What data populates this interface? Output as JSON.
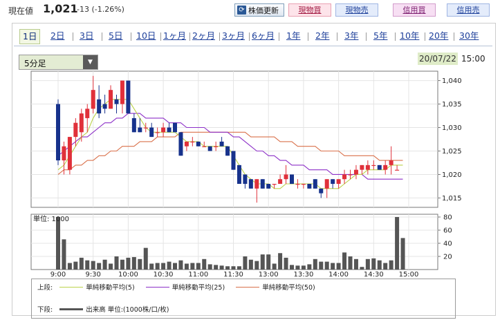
{
  "header": {
    "price_label": "現在値",
    "price_value": "1,021",
    "price_change": "-13 (-1.26%)",
    "refresh_label": "株価更新",
    "buttons": [
      "現物買",
      "現物売",
      "信用買",
      "信用売"
    ]
  },
  "tabs": [
    "1日",
    "2日",
    "3日",
    "5日",
    "10日",
    "1ヶ月",
    "2ヶ月",
    "3ヶ月",
    "6ヶ月",
    "1年",
    "2年",
    "3年",
    "5年",
    "10年",
    "20年",
    "30年"
  ],
  "active_tab": "1日",
  "interval_select": {
    "value": "5分足"
  },
  "date": "20/07/22",
  "time": "15:00",
  "colors": {
    "up": "#e0303a",
    "down": "#17328c",
    "ma5": "#bbd24a",
    "ma25": "#8c2fc7",
    "ma50": "#d9704a",
    "volume": "#555555"
  },
  "chart_data": {
    "type": "candlestick",
    "interval": "5分足",
    "x_tick_labels": [
      "9:00",
      "9:30",
      "10:00",
      "10:30",
      "11:00",
      "11:30",
      "13:00",
      "13:30",
      "14:00",
      "14:30",
      "15:00"
    ],
    "price_axis": {
      "ticks": [
        1015,
        1020,
        1025,
        1030,
        1035,
        1040
      ],
      "tick_labels": [
        "1,015",
        "1,020",
        "1,025",
        "1,030",
        "1,035",
        "1,040"
      ],
      "ylim": [
        1013,
        1042
      ]
    },
    "volume_axis": {
      "unit_label": "単位: 1000",
      "ticks": [
        20,
        40,
        60,
        80
      ],
      "ylim": [
        0,
        80
      ]
    },
    "candles": [
      {
        "o": 1035,
        "h": 1036,
        "l": 1022,
        "c": 1023
      },
      {
        "o": 1023,
        "h": 1027,
        "l": 1020,
        "c": 1026
      },
      {
        "o": 1021,
        "h": 1028,
        "l": 1020,
        "c": 1028
      },
      {
        "o": 1028,
        "h": 1032,
        "l": 1026,
        "c": 1031
      },
      {
        "o": 1029,
        "h": 1034,
        "l": 1027,
        "c": 1033
      },
      {
        "o": 1032,
        "h": 1035,
        "l": 1029,
        "c": 1034
      },
      {
        "o": 1034,
        "h": 1041,
        "l": 1033,
        "c": 1038
      },
      {
        "o": 1036,
        "h": 1039,
        "l": 1032,
        "c": 1033
      },
      {
        "o": 1035,
        "h": 1037,
        "l": 1033,
        "c": 1034
      },
      {
        "o": 1034,
        "h": 1039,
        "l": 1034,
        "c": 1038
      },
      {
        "o": 1036,
        "h": 1037,
        "l": 1033,
        "c": 1035
      },
      {
        "o": 1035,
        "h": 1040,
        "l": 1033,
        "c": 1040
      },
      {
        "o": 1040,
        "h": 1040,
        "l": 1033,
        "c": 1033
      },
      {
        "o": 1032,
        "h": 1033,
        "l": 1029,
        "c": 1029
      },
      {
        "o": 1030,
        "h": 1032,
        "l": 1029,
        "c": 1029
      },
      {
        "o": 1030,
        "h": 1031,
        "l": 1029,
        "c": 1030
      },
      {
        "o": 1030,
        "h": 1031,
        "l": 1028,
        "c": 1028
      },
      {
        "o": 1029,
        "h": 1030,
        "l": 1028,
        "c": 1029
      },
      {
        "o": 1029,
        "h": 1031,
        "l": 1028,
        "c": 1030
      },
      {
        "o": 1030,
        "h": 1031,
        "l": 1029,
        "c": 1029
      },
      {
        "o": 1031,
        "h": 1031,
        "l": 1029,
        "c": 1029
      },
      {
        "o": 1029,
        "h": 1029,
        "l": 1024,
        "c": 1024
      },
      {
        "o": 1026,
        "h": 1027,
        "l": 1025,
        "c": 1027
      },
      {
        "o": 1027,
        "h": 1028,
        "l": 1026,
        "c": 1027
      },
      {
        "o": 1027,
        "h": 1027,
        "l": 1026,
        "c": 1026
      },
      {
        "o": 1026,
        "h": 1027,
        "l": 1026,
        "c": 1026
      },
      {
        "o": 1026,
        "h": 1026,
        "l": 1025,
        "c": 1025
      },
      {
        "o": 1026,
        "h": 1027,
        "l": 1025,
        "c": 1026
      },
      {
        "o": 1027,
        "h": 1028,
        "l": 1026,
        "c": 1026
      },
      {
        "o": 1026,
        "h": 1026,
        "l": 1024,
        "c": 1024
      },
      {
        "o": 1025,
        "h": 1025,
        "l": 1021,
        "c": 1021
      },
      {
        "o": 1022,
        "h": 1022,
        "l": 1018,
        "c": 1018
      },
      {
        "o": 1020,
        "h": 1020,
        "l": 1017,
        "c": 1018
      },
      {
        "o": 1019,
        "h": 1019,
        "l": 1017,
        "c": 1017
      },
      {
        "o": 1017,
        "h": 1019,
        "l": 1014,
        "c": 1019
      },
      {
        "o": 1019,
        "h": 1019,
        "l": 1017,
        "c": 1017
      },
      {
        "o": 1018,
        "h": 1018,
        "l": 1017,
        "c": 1017
      },
      {
        "o": 1018,
        "h": 1018,
        "l": 1017,
        "c": 1018
      },
      {
        "o": 1018,
        "h": 1020,
        "l": 1018,
        "c": 1019
      },
      {
        "o": 1019,
        "h": 1022,
        "l": 1018,
        "c": 1020
      },
      {
        "o": 1020,
        "h": 1020,
        "l": 1018,
        "c": 1018
      },
      {
        "o": 1018,
        "h": 1019,
        "l": 1017,
        "c": 1018
      },
      {
        "o": 1018,
        "h": 1018,
        "l": 1017,
        "c": 1018
      },
      {
        "o": 1018,
        "h": 1018,
        "l": 1017,
        "c": 1017
      },
      {
        "o": 1019,
        "h": 1019,
        "l": 1017,
        "c": 1017
      },
      {
        "o": 1017,
        "h": 1017,
        "l": 1015,
        "c": 1016
      },
      {
        "o": 1017,
        "h": 1019,
        "l": 1015,
        "c": 1019
      },
      {
        "o": 1019,
        "h": 1019,
        "l": 1017,
        "c": 1018
      },
      {
        "o": 1018,
        "h": 1019,
        "l": 1017,
        "c": 1019
      },
      {
        "o": 1019,
        "h": 1021,
        "l": 1018,
        "c": 1020
      },
      {
        "o": 1020,
        "h": 1021,
        "l": 1019,
        "c": 1020
      },
      {
        "o": 1020,
        "h": 1022,
        "l": 1019,
        "c": 1021
      },
      {
        "o": 1021,
        "h": 1022,
        "l": 1020,
        "c": 1022
      },
      {
        "o": 1021,
        "h": 1023,
        "l": 1020,
        "c": 1022
      },
      {
        "o": 1022,
        "h": 1023,
        "l": 1021,
        "c": 1022
      },
      {
        "o": 1022,
        "h": 1022,
        "l": 1021,
        "c": 1021
      },
      {
        "o": 1021,
        "h": 1023,
        "l": 1020,
        "c": 1022
      },
      {
        "o": 1022,
        "h": 1026,
        "l": 1020,
        "c": 1023
      },
      {
        "o": 1021,
        "h": 1022,
        "l": 1021,
        "c": 1021
      }
    ],
    "volume": [
      80,
      46,
      10,
      12,
      18,
      14,
      13,
      10,
      15,
      9,
      20,
      15,
      18,
      19,
      16,
      33,
      9,
      10,
      10,
      12,
      10,
      14,
      9,
      10,
      10,
      16,
      8,
      7,
      6,
      5,
      5,
      5,
      20,
      15,
      13,
      23,
      23,
      9,
      25,
      18,
      7,
      6,
      6,
      8,
      16,
      12,
      12,
      10,
      10,
      26,
      20,
      16,
      4,
      16,
      17,
      14,
      10,
      14,
      80,
      48
    ],
    "ma5": [
      1021,
      1022,
      1024,
      1026,
      1028,
      1029,
      1032,
      1034,
      1035,
      1036,
      1036,
      1036,
      1036,
      1034,
      1032,
      1030,
      1029,
      1029,
      1029,
      1029,
      1029,
      1028,
      1027,
      1027,
      1027,
      1026,
      1026,
      1026,
      1026,
      1026,
      1024,
      1022,
      1020,
      1019,
      1018,
      1018,
      1018,
      1017,
      1017,
      1018,
      1018,
      1018,
      1018,
      1018,
      1018,
      1017,
      1017,
      1017,
      1017,
      1018,
      1019,
      1020,
      1020,
      1021,
      1021,
      1021,
      1021,
      1022,
      1022,
      1022
    ],
    "ma25": [
      1024,
      1025,
      1026,
      1027,
      1028,
      1028,
      1029,
      1030,
      1031,
      1031,
      1032,
      1032,
      1033,
      1033,
      1033,
      1032,
      1032,
      1032,
      1032,
      1031,
      1031,
      1031,
      1030,
      1030,
      1030,
      1030,
      1029,
      1029,
      1029,
      1029,
      1028,
      1028,
      1027,
      1026,
      1025,
      1025,
      1024,
      1024,
      1023,
      1023,
      1022,
      1022,
      1022,
      1021,
      1021,
      1021,
      1021,
      1020,
      1020,
      1020,
      1020,
      1020,
      1020,
      1019,
      1019,
      1019,
      1019,
      1019,
      1019,
      1019
    ],
    "ma50": [
      1020,
      1021,
      1021,
      1022,
      1022,
      1023,
      1023,
      1024,
      1024,
      1025,
      1025,
      1026,
      1026,
      1026,
      1027,
      1027,
      1027,
      1028,
      1028,
      1028,
      1028,
      1029,
      1029,
      1029,
      1029,
      1029,
      1029,
      1029,
      1029,
      1029,
      1029,
      1029,
      1029,
      1028,
      1028,
      1028,
      1028,
      1028,
      1027,
      1027,
      1027,
      1026,
      1026,
      1026,
      1026,
      1025,
      1025,
      1025,
      1025,
      1024,
      1024,
      1024,
      1024,
      1024,
      1024,
      1023,
      1023,
      1023,
      1023,
      1023
    ],
    "legend": {
      "upper_label": "上段:",
      "lower_label": "下段:",
      "ma5_label": "単純移動平均(5)",
      "ma25_label": "単純移動平均(25)",
      "ma50_label": "単純移動平均(50)",
      "volume_label": "出来高 単位:(1000株/口/枚)"
    }
  }
}
